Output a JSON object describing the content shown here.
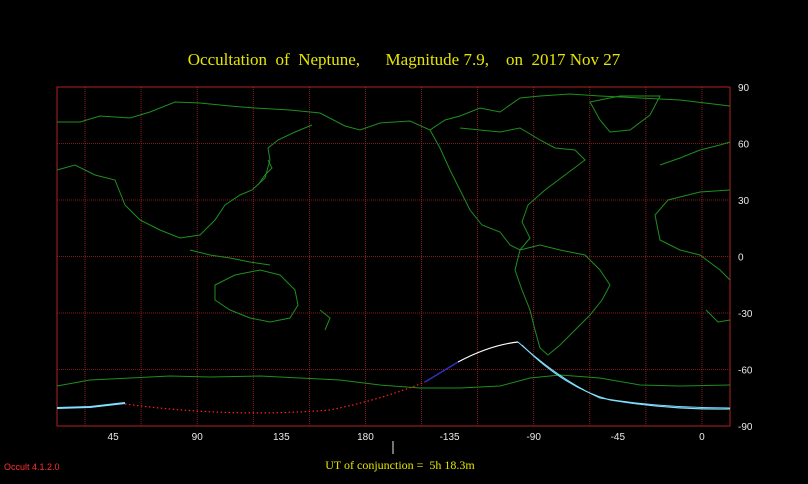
{
  "title": "Occultation  of  Neptune,      Magnitude 7.9,    on  2017 Nov 27",
  "ut_label": "UT of conjunction =  5h 18.3m",
  "version": "Occult 4.1.2.0",
  "axes": {
    "lon_ticks": [
      {
        "value": 45,
        "label": "45"
      },
      {
        "value": 90,
        "label": "90"
      },
      {
        "value": 135,
        "label": "135"
      },
      {
        "value": 180,
        "label": "180"
      },
      {
        "value": -135,
        "label": "-135"
      },
      {
        "value": -90,
        "label": "-90"
      },
      {
        "value": -45,
        "label": "-45"
      },
      {
        "value": 0,
        "label": "0"
      }
    ],
    "lat_ticks": [
      {
        "value": 90,
        "label": "90"
      },
      {
        "value": 60,
        "label": "60"
      },
      {
        "value": 30,
        "label": "30"
      },
      {
        "value": 0,
        "label": "0"
      },
      {
        "value": -30,
        "label": "-30"
      },
      {
        "value": -60,
        "label": "-60"
      },
      {
        "value": -90,
        "label": "-90"
      }
    ]
  },
  "colors": {
    "grid": "#b02020",
    "coast": "#1f8f1f",
    "daylight_path": "#ffffff",
    "twilight_path": "#3030c0",
    "night_path": "#ff2020",
    "limit": "#80e0ff"
  }
}
